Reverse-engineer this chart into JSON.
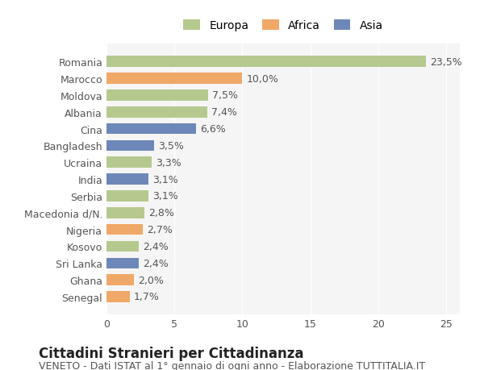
{
  "categories": [
    "Romania",
    "Marocco",
    "Moldova",
    "Albania",
    "Cina",
    "Bangladesh",
    "Ucraina",
    "India",
    "Serbia",
    "Macedonia d/N.",
    "Nigeria",
    "Kosovo",
    "Sri Lanka",
    "Ghana",
    "Senegal"
  ],
  "values": [
    23.5,
    10.0,
    7.5,
    7.4,
    6.6,
    3.5,
    3.3,
    3.1,
    3.1,
    2.8,
    2.7,
    2.4,
    2.4,
    2.0,
    1.7
  ],
  "labels": [
    "23,5%",
    "10,0%",
    "7,5%",
    "7,4%",
    "6,6%",
    "3,5%",
    "3,3%",
    "3,1%",
    "3,1%",
    "2,8%",
    "2,7%",
    "2,4%",
    "2,4%",
    "2,0%",
    "1,7%"
  ],
  "continents": [
    "Europa",
    "Africa",
    "Europa",
    "Europa",
    "Asia",
    "Asia",
    "Europa",
    "Asia",
    "Europa",
    "Europa",
    "Africa",
    "Europa",
    "Asia",
    "Africa",
    "Africa"
  ],
  "colors": {
    "Europa": "#b5c98e",
    "Africa": "#f0a868",
    "Asia": "#6d88b8"
  },
  "legend_items": [
    "Europa",
    "Africa",
    "Asia"
  ],
  "xlim": [
    0,
    26
  ],
  "xticks": [
    0,
    5,
    10,
    15,
    20,
    25
  ],
  "title": "Cittadini Stranieri per Cittadinanza",
  "subtitle": "VENETO - Dati ISTAT al 1° gennaio di ogni anno - Elaborazione TUTTITALIA.IT",
  "background_color": "#ffffff",
  "plot_bg_color": "#f5f5f5",
  "bar_height": 0.65,
  "label_fontsize": 9,
  "tick_fontsize": 9,
  "title_fontsize": 12,
  "subtitle_fontsize": 9
}
